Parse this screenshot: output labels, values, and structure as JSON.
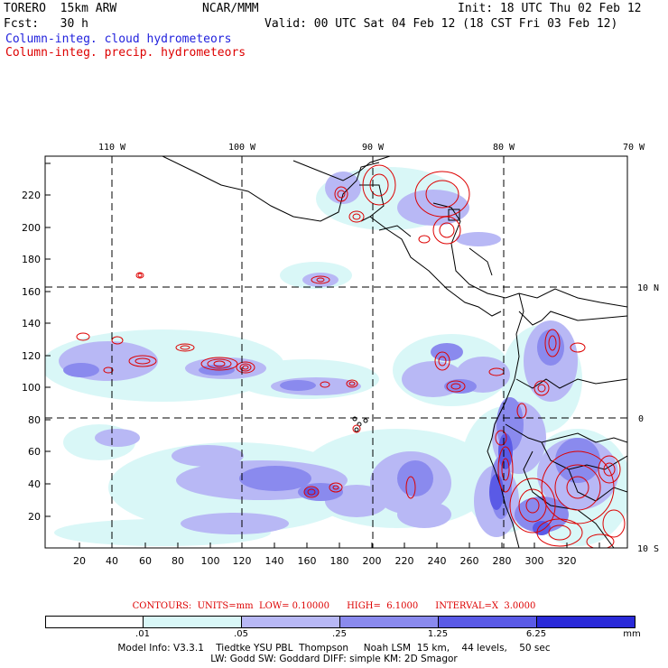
{
  "header": {
    "model": "TORERO  15km ARW",
    "center": "NCAR/MMM",
    "init": "Init: 18 UTC Thu 02 Feb 12",
    "fcst": "Fcst:   30 h",
    "valid": "Valid: 00 UTC Sat 04 Feb 12 (18 CST Fri 03 Feb 12)",
    "field1": "Column-integ. cloud hydrometeors",
    "field2": "Column-integ. precip. hydrometeors"
  },
  "colors": {
    "cloud_fill": [
      "#d9f7f7",
      "#b8b8f5",
      "#8a8aee",
      "#5a5ae6",
      "#2a2ad8"
    ],
    "precip_contour": "#dd0000",
    "text_blue": "#2222dd"
  },
  "map": {
    "longitude_labels": [
      "110 W",
      "100 W",
      "90 W",
      "80 W",
      "70 W"
    ],
    "latitude_labels": [
      "10 N",
      "0",
      "10 S"
    ],
    "x_ticks": [
      "20",
      "40",
      "60",
      "80",
      "100",
      "120",
      "140",
      "160",
      "180",
      "200",
      "220",
      "240",
      "260",
      "280",
      "300",
      "320"
    ],
    "y_ticks": [
      "20",
      "40",
      "60",
      "80",
      "100",
      "120",
      "140",
      "160",
      "180",
      "200",
      "220"
    ]
  },
  "contours": {
    "label": "CONTOURS:  UNITS=mm  LOW= 0.10000      HIGH=  6.1000      INTERVAL=X  3.0000"
  },
  "colorbar": {
    "levels": [
      ".01",
      ".05",
      ".25",
      "1.25",
      "6.25"
    ],
    "unit": "mm"
  },
  "footer": {
    "line1": "Model Info: V3.3.1    Tiedtke YSU PBL  Thompson     Noah LSM  15 km,    44 levels,    50 sec",
    "line2": "LW: Godd SW: Goddard DIFF: simple KM: 2D Smagor"
  }
}
